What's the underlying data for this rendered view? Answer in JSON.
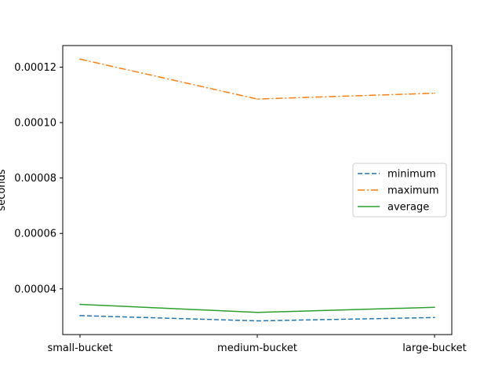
{
  "chart_data": {
    "type": "line",
    "title": "",
    "xlabel": "",
    "ylabel": "seconds",
    "categories": [
      "small-bucket",
      "medium-bucket",
      "large-bucket"
    ],
    "series": [
      {
        "name": "minimum",
        "values": [
          3.035e-05,
          2.845e-05,
          2.965e-05
        ],
        "color": "#1f77b4",
        "style": "dashed"
      },
      {
        "name": "maximum",
        "values": [
          0.0001229,
          0.0001085,
          0.0001106
        ],
        "color": "#ff7f0e",
        "style": "dashdot"
      },
      {
        "name": "average",
        "values": [
          3.44e-05,
          3.15e-05,
          3.335e-05
        ],
        "color": "#2ca02c",
        "style": "solid"
      }
    ],
    "ylim": [
      2.35e-05,
      0.0001278
    ],
    "yticks": [
      {
        "value": 4e-05,
        "label": "0.00004"
      },
      {
        "value": 6e-05,
        "label": "0.00006"
      },
      {
        "value": 8e-05,
        "label": "0.00008"
      },
      {
        "value": 0.0001,
        "label": "0.00010"
      },
      {
        "value": 0.00012,
        "label": "0.00012"
      }
    ],
    "grid": false,
    "legend": "center-right"
  }
}
